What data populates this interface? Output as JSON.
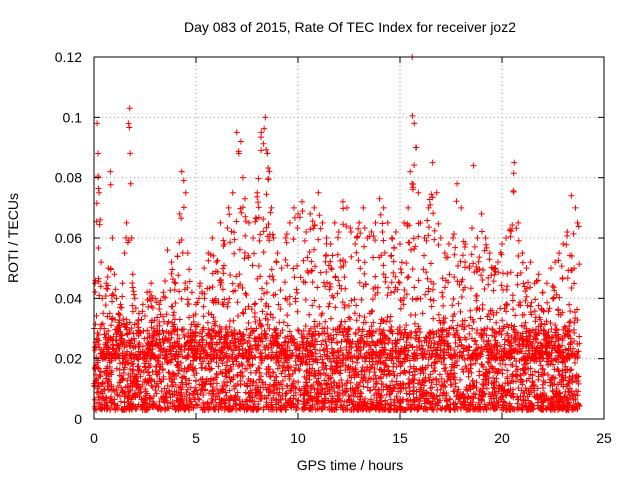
{
  "chart_data": {
    "type": "scatter",
    "title": "Day 083 of 2015, Rate Of TEC Index for receiver joz2",
    "xlabel": "GPS time / hours",
    "ylabel": "ROTI / TECUs",
    "xlim": [
      0,
      25
    ],
    "ylim": [
      0,
      0.12
    ],
    "xticks": [
      0,
      5,
      10,
      15,
      20,
      25
    ],
    "xtick_labels": [
      "0",
      "5",
      "10",
      "15",
      "20",
      "25"
    ],
    "yticks": [
      0,
      0.02,
      0.04,
      0.06,
      0.08,
      0.1,
      0.12
    ],
    "ytick_labels": [
      "0",
      "0.02",
      "0.04",
      "0.06",
      "0.08",
      "0.1",
      "0.12"
    ],
    "grid": true,
    "marker": "+",
    "color": "#ff0000",
    "series": [
      {
        "name": "ROTI",
        "x": [
          0.05,
          0.15,
          0.2,
          0.25,
          0.3,
          0.35,
          0.4,
          0.45,
          0.5,
          0.6,
          0.7,
          0.8,
          0.9,
          1.0,
          1.1,
          1.2,
          1.3,
          1.4,
          1.5,
          1.6,
          1.7,
          1.75,
          1.8,
          1.85,
          1.9,
          2.0,
          2.2,
          2.4,
          2.6,
          2.8,
          3.0,
          3.2,
          3.4,
          3.6,
          3.8,
          4.0,
          4.2,
          4.3,
          4.4,
          4.5,
          4.6,
          4.8,
          5.0,
          5.2,
          5.4,
          5.6,
          5.8,
          6.0,
          6.2,
          6.4,
          6.6,
          6.8,
          7.0,
          7.1,
          7.2,
          7.3,
          7.4,
          7.6,
          7.8,
          8.0,
          8.2,
          8.4,
          8.5,
          8.6,
          8.7,
          8.8,
          9.0,
          9.2,
          9.4,
          9.6,
          9.8,
          10.0,
          10.2,
          10.4,
          10.6,
          10.8,
          11.0,
          11.2,
          11.4,
          11.6,
          11.8,
          12.0,
          12.2,
          12.4,
          12.6,
          12.8,
          13.0,
          13.2,
          13.4,
          13.6,
          13.8,
          14.0,
          14.2,
          14.4,
          14.6,
          14.8,
          15.0,
          15.2,
          15.4,
          15.5,
          15.6,
          15.7,
          15.8,
          15.9,
          16.0,
          16.2,
          16.4,
          16.6,
          16.8,
          17.0,
          17.2,
          17.4,
          17.6,
          17.8,
          18.0,
          18.2,
          18.4,
          18.6,
          18.8,
          19.0,
          19.2,
          19.4,
          19.6,
          19.8,
          20.0,
          20.2,
          20.4,
          20.6,
          20.8,
          21.0,
          21.2,
          21.4,
          21.6,
          21.8,
          22.0,
          22.2,
          22.4,
          22.6,
          22.8,
          23.0,
          23.2,
          23.4,
          23.6,
          23.7
        ],
        "y": [
          0.045,
          0.098,
          0.088,
          0.075,
          0.066,
          0.052,
          0.04,
          0.035,
          0.03,
          0.045,
          0.05,
          0.082,
          0.06,
          0.048,
          0.04,
          0.035,
          0.038,
          0.045,
          0.055,
          0.065,
          0.098,
          0.103,
          0.078,
          0.06,
          0.048,
          0.04,
          0.035,
          0.038,
          0.042,
          0.045,
          0.04,
          0.038,
          0.042,
          0.056,
          0.052,
          0.045,
          0.068,
          0.082,
          0.079,
          0.075,
          0.055,
          0.042,
          0.038,
          0.045,
          0.05,
          0.055,
          0.06,
          0.052,
          0.065,
          0.058,
          0.07,
          0.075,
          0.095,
          0.088,
          0.092,
          0.08,
          0.073,
          0.065,
          0.06,
          0.075,
          0.095,
          0.1,
          0.088,
          0.082,
          0.07,
          0.06,
          0.055,
          0.05,
          0.06,
          0.065,
          0.07,
          0.068,
          0.072,
          0.062,
          0.068,
          0.07,
          0.075,
          0.065,
          0.06,
          0.058,
          0.065,
          0.062,
          0.072,
          0.07,
          0.062,
          0.058,
          0.065,
          0.07,
          0.06,
          0.062,
          0.065,
          0.073,
          0.07,
          0.065,
          0.06,
          0.062,
          0.058,
          0.065,
          0.07,
          0.082,
          0.12,
          0.098,
          0.09,
          0.075,
          0.065,
          0.06,
          0.07,
          0.085,
          0.075,
          0.06,
          0.055,
          0.058,
          0.06,
          0.078,
          0.07,
          0.058,
          0.05,
          0.084,
          0.06,
          0.068,
          0.06,
          0.055,
          0.05,
          0.052,
          0.058,
          0.06,
          0.063,
          0.085,
          0.065,
          0.055,
          0.05,
          0.052,
          0.045,
          0.048,
          0.042,
          0.045,
          0.05,
          0.052,
          0.055,
          0.058,
          0.062,
          0.074,
          0.07,
          0.065
        ],
        "baseline_band": [
          0.003,
          0.03
        ],
        "note": "Dense band of points between ~0.003 and ~0.03 TECU across the full 0–24 h range; upper values above are peaks."
      }
    ]
  }
}
